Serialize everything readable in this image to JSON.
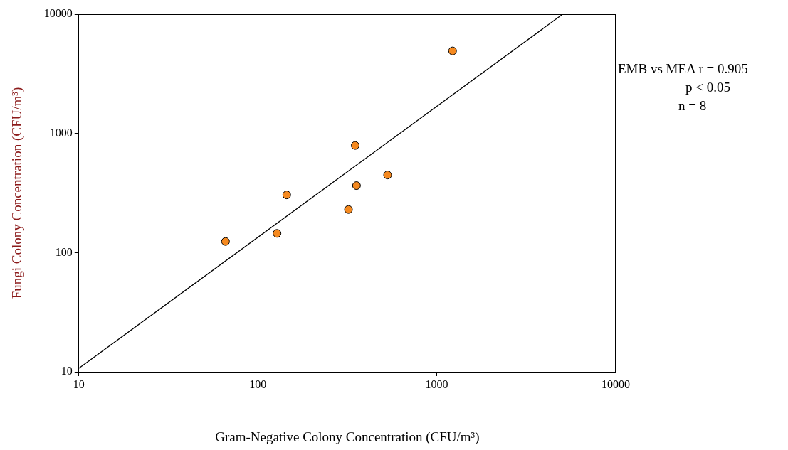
{
  "chart_data": {
    "type": "scatter",
    "xlabel": "Gram-Negative Colony Concentration (CFU/m³)",
    "ylabel": "Fungi Colony Concentration (CFU/m³)",
    "annotations": [
      "EMB vs MEA r = 0.905",
      "p < 0.05",
      "n = 8"
    ],
    "log": "xy",
    "grid": false,
    "legend": false,
    "marker": "circle",
    "xlim": [
      10,
      10000
    ],
    "ylim": [
      10,
      10000
    ],
    "xticks": [
      10,
      100,
      1000,
      10000
    ],
    "yticks": [
      10,
      100,
      1000,
      10000
    ],
    "x": [
      66,
      128,
      145,
      321,
      350,
      356,
      531,
      1225
    ],
    "series": [
      {
        "type": "scatter",
        "color": "#f5891f",
        "values": [
          124,
          145,
          305,
          230,
          792,
          365,
          448,
          4920
        ]
      },
      {
        "type": "line",
        "color": "#000000",
        "marker": "none",
        "line_style": "solid",
        "x": [
          10,
          5050
        ],
        "values": [
          10.7,
          10000
        ]
      }
    ]
  }
}
